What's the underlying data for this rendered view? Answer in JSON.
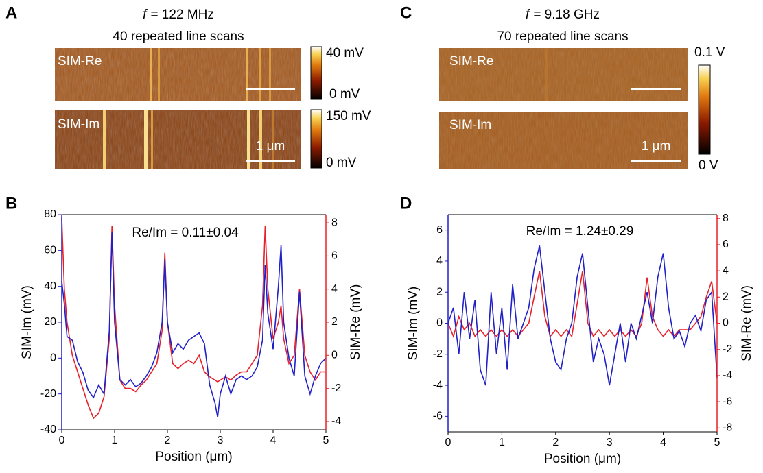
{
  "panel_labels": [
    "A",
    "B",
    "C",
    "D"
  ],
  "images": [
    {
      "title_symbol": "f",
      "title": "= 122 MHz",
      "subtitle": "40 repeated line scans",
      "scans": [
        {
          "label": "SIM-Re",
          "colorbar": {
            "max": "40 mV",
            "min": "0 mV"
          }
        },
        {
          "label": "SIM-Im",
          "colorbar": {
            "max": "150 mV",
            "min": "0 mV"
          }
        }
      ],
      "scalebar": "1 μm"
    },
    {
      "title_symbol": "f",
      "title": "= 9.18 GHz",
      "subtitle": "70 repeated line scans",
      "scans": [
        {
          "label": "SIM-Re"
        },
        {
          "label": "SIM-Im"
        }
      ],
      "colorbar": {
        "max": "0.1 V",
        "min": "0 V"
      },
      "scalebar": "1 μm"
    }
  ],
  "chart_data": [
    {
      "type": "line",
      "annotation": "Re/Im = 0.11±0.04",
      "xlabel": "Position (μm)",
      "ylabel": "SIM-Im (mV)",
      "y2label": "SIM-Re (mV)",
      "xlim": [
        0,
        5
      ],
      "xticks": [
        0,
        1,
        2,
        3,
        4,
        5
      ],
      "ylim": [
        -40,
        80
      ],
      "yticks": [
        -40,
        -20,
        0,
        20,
        40,
        60,
        80
      ],
      "y2lim": [
        -4.5,
        8.5
      ],
      "y2ticks": [
        -4,
        -2,
        0,
        2,
        4,
        6,
        8
      ],
      "x": [
        0,
        0.05,
        0.1,
        0.2,
        0.3,
        0.4,
        0.5,
        0.6,
        0.7,
        0.8,
        0.9,
        0.95,
        1.0,
        1.1,
        1.2,
        1.3,
        1.4,
        1.5,
        1.6,
        1.7,
        1.8,
        1.9,
        1.95,
        2.0,
        2.1,
        2.2,
        2.3,
        2.4,
        2.5,
        2.6,
        2.7,
        2.8,
        2.9,
        2.95,
        3.0,
        3.1,
        3.2,
        3.3,
        3.4,
        3.5,
        3.6,
        3.7,
        3.8,
        3.85,
        3.9,
        4.0,
        4.1,
        4.15,
        4.2,
        4.3,
        4.4,
        4.5,
        4.6,
        4.7,
        4.8,
        4.9,
        5.0
      ],
      "series": [
        {
          "color": "#2020c8",
          "axis": "y",
          "values": [
            43,
            30,
            12,
            10,
            -2,
            -8,
            -18,
            -22,
            -15,
            -20,
            15,
            70,
            20,
            -12,
            -15,
            -12,
            -16,
            -14,
            -10,
            -5,
            3,
            20,
            55,
            20,
            3,
            8,
            5,
            10,
            12,
            14,
            8,
            -15,
            -25,
            -33,
            -20,
            -10,
            -20,
            -12,
            -10,
            -12,
            -10,
            -5,
            10,
            52,
            25,
            5,
            40,
            63,
            20,
            0,
            -10,
            37,
            -10,
            -20,
            -10,
            -3,
            0
          ]
        },
        {
          "color": "#e8202a",
          "axis": "y2",
          "values": [
            8.3,
            4,
            2,
            0,
            -1,
            -2,
            -3,
            -3.8,
            -3.5,
            -2.5,
            1,
            7.8,
            3,
            -1.5,
            -2,
            -2,
            -2.2,
            -1.8,
            -1.5,
            -1,
            -0.5,
            1.5,
            6.2,
            2,
            -0.5,
            -0.8,
            -0.5,
            -0.3,
            -0.5,
            0,
            -1,
            -1.3,
            -1.5,
            -1.6,
            -1.5,
            -1.3,
            -1.5,
            -1.2,
            -1,
            -1,
            -0.5,
            0,
            3,
            7.8,
            4,
            1,
            2,
            3,
            1,
            -0.5,
            0,
            4,
            0,
            -1,
            -1.5,
            -1,
            -1
          ]
        }
      ]
    },
    {
      "type": "line",
      "annotation": "Re/Im = 1.24±0.29",
      "xlabel": "Position (μm)",
      "ylabel": "SIM-Im (mV)",
      "y2label": "SIM-Re (mV)",
      "xlim": [
        0,
        5
      ],
      "xticks": [
        0,
        1,
        2,
        3,
        4,
        5
      ],
      "ylim": [
        -7,
        7
      ],
      "yticks": [
        -6,
        -4,
        -2,
        0,
        2,
        4,
        6
      ],
      "y2lim": [
        -8.3,
        8.3
      ],
      "y2ticks": [
        -8,
        -6,
        -4,
        -2,
        0,
        2,
        4,
        6,
        8
      ],
      "x": [
        0,
        0.1,
        0.2,
        0.3,
        0.4,
        0.5,
        0.6,
        0.7,
        0.8,
        0.9,
        1.0,
        1.1,
        1.2,
        1.3,
        1.4,
        1.5,
        1.6,
        1.7,
        1.8,
        1.9,
        2.0,
        2.1,
        2.2,
        2.3,
        2.4,
        2.5,
        2.6,
        2.7,
        2.8,
        2.9,
        3.0,
        3.1,
        3.2,
        3.3,
        3.4,
        3.5,
        3.6,
        3.7,
        3.8,
        3.9,
        4.0,
        4.1,
        4.2,
        4.3,
        4.4,
        4.5,
        4.6,
        4.7,
        4.8,
        4.9,
        5.0
      ],
      "series": [
        {
          "color": "#2020c8",
          "axis": "y",
          "values": [
            0,
            1,
            -2,
            2,
            -1,
            1.5,
            -3,
            -4,
            2,
            -2,
            1,
            -3,
            2.5,
            -1,
            0,
            1,
            3.5,
            5,
            2,
            -1,
            -2.5,
            -3,
            -1,
            0,
            3,
            4.5,
            1,
            -2.5,
            -1,
            -2,
            -4,
            -2,
            0,
            -2.5,
            0,
            -1,
            0.5,
            2,
            0,
            3,
            4.5,
            1,
            -1,
            -0.5,
            -1.5,
            0,
            0.5,
            -0.5,
            1.5,
            2,
            -3.5
          ]
        },
        {
          "color": "#e8202a",
          "axis": "y2",
          "values": [
            0,
            -1,
            0.5,
            -0.5,
            0,
            -1,
            -0.5,
            -1,
            -0.5,
            -1,
            -0.5,
            -1,
            -0.5,
            -1,
            -0.5,
            0,
            2,
            4,
            0.5,
            -1,
            -0.5,
            -1,
            -0.5,
            -1,
            1.5,
            4,
            0,
            -1,
            -0.5,
            -1,
            -0.5,
            -1,
            -0.5,
            -1,
            -0.5,
            -1,
            0,
            3.5,
            0.5,
            -0.5,
            -1,
            -0.5,
            -1,
            -0.5,
            -0.5,
            -0.5,
            0,
            0.5,
            2,
            3.2,
            0
          ]
        }
      ]
    }
  ]
}
